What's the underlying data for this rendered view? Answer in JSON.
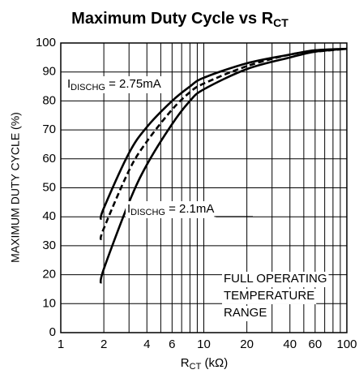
{
  "chart_data": {
    "type": "line",
    "title": {
      "main": "Maximum Duty Cycle vs R",
      "sub": "CT"
    },
    "x_label": {
      "main": "R",
      "sub": "CT",
      "tail": " (kΩ)"
    },
    "y_label": "MAXIMUM DUTY CYCLE (%)",
    "log_x": true,
    "grid": true,
    "xlim": [
      1,
      100
    ],
    "ylim": [
      0,
      100
    ],
    "xticks": [
      1,
      2,
      4,
      6,
      10,
      20,
      40,
      60,
      100
    ],
    "xminorticks": [
      3,
      5,
      7,
      8,
      9,
      30,
      50,
      70,
      80,
      90
    ],
    "yticks": [
      0,
      10,
      20,
      30,
      40,
      50,
      60,
      70,
      80,
      90,
      100
    ],
    "series": [
      {
        "color": "#000000",
        "dashed": false,
        "x": [
          1.9,
          2,
          3,
          4,
          6,
          8,
          10,
          20,
          40,
          60,
          100
        ],
        "values": [
          39,
          43,
          62,
          71,
          80,
          85,
          88,
          93,
          96,
          97.5,
          98
        ]
      },
      {
        "color": "#000000",
        "dashed": true,
        "x": [
          1.9,
          2,
          3,
          4,
          6,
          8,
          10,
          20,
          40,
          60,
          100
        ],
        "values": [
          32,
          36,
          56,
          66,
          77,
          83,
          86,
          92,
          96,
          97,
          98
        ]
      },
      {
        "color": "#000000",
        "dashed": false,
        "x": [
          1.9,
          2,
          3,
          4,
          6,
          8,
          10,
          20,
          40,
          60,
          100
        ],
        "values": [
          17,
          22,
          45,
          58,
          72,
          80,
          84,
          91,
          95,
          97,
          98
        ]
      }
    ],
    "annotations": [
      {
        "main": "I",
        "sub": "DISCHG",
        "tail": " = 2.75mA"
      },
      {
        "main": "I",
        "sub": "DISCHG",
        "tail": " = 2.1mA"
      },
      {
        "lines": [
          "FULL OPERATING",
          "TEMPERATURE",
          "RANGE"
        ]
      }
    ]
  }
}
